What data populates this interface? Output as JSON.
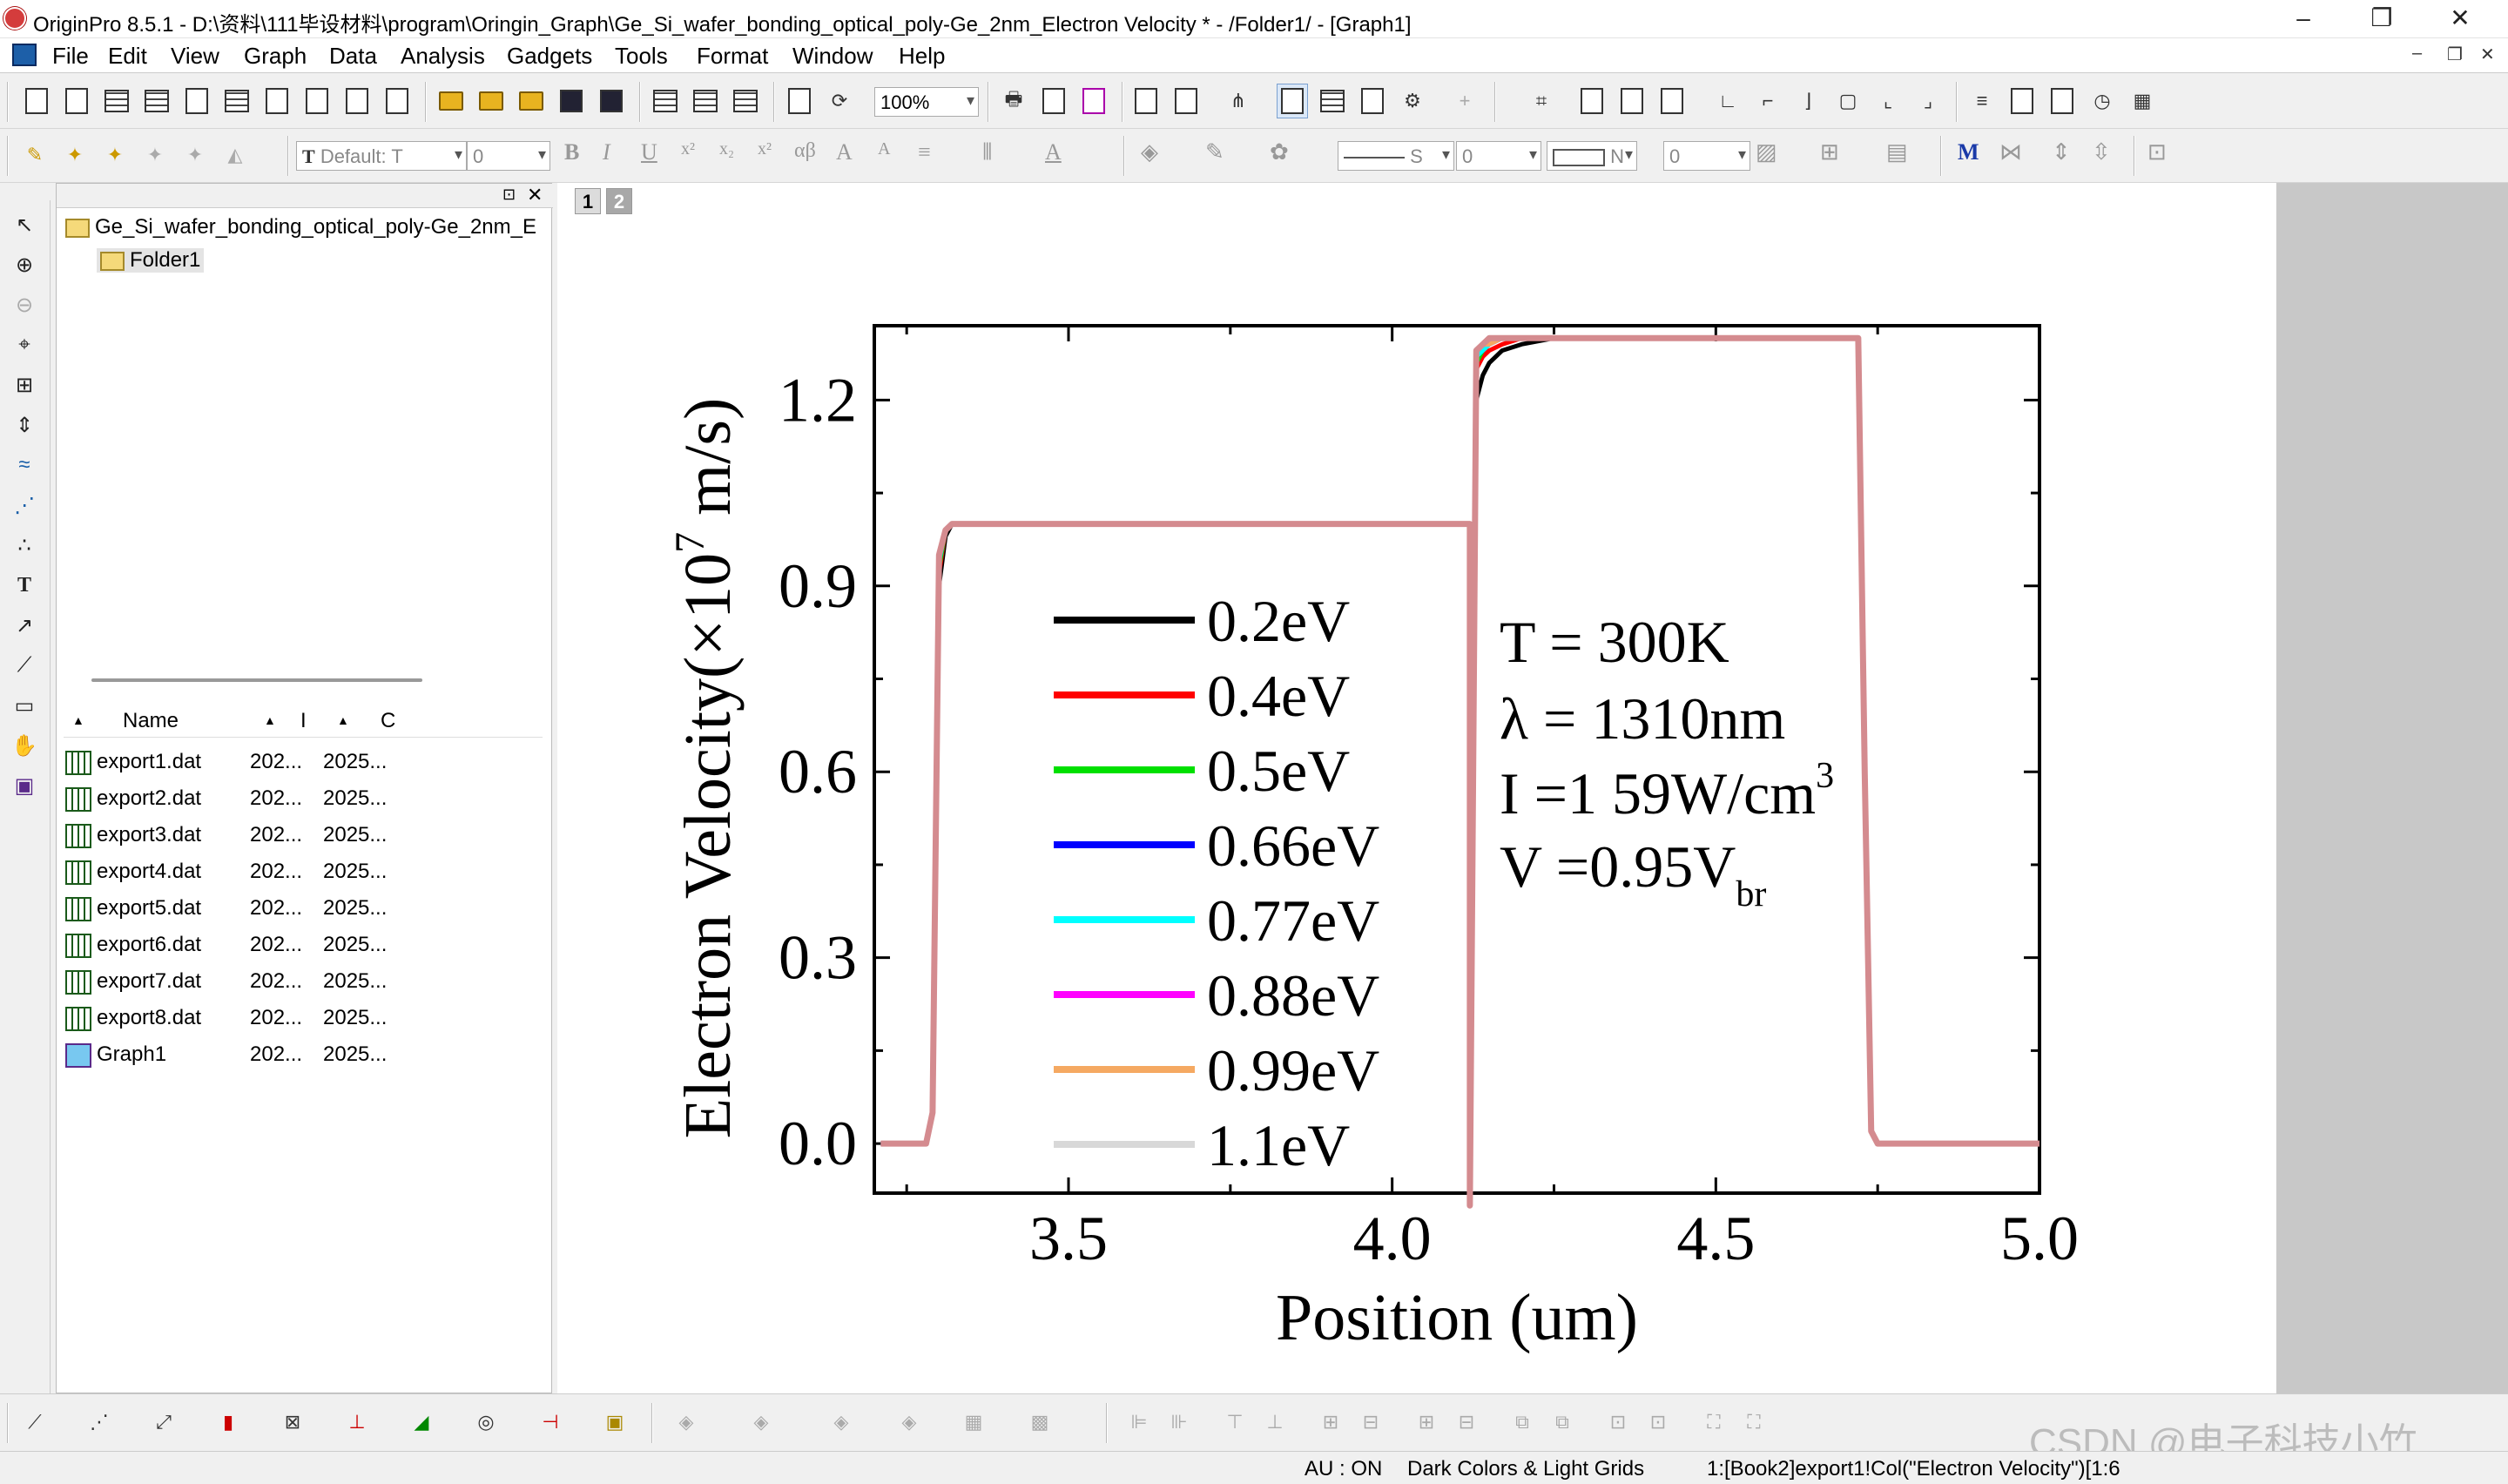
{
  "window": {
    "title": "OriginPro 8.5.1 - D:\\资料\\111毕设材料\\program\\Oringin_Graph\\Ge_Si_wafer_bonding_optical_poly-Ge_2nm_Electron Velocity * - /Folder1/ - [Graph1]",
    "min": "–",
    "max": "❐",
    "close": "✕"
  },
  "menu": [
    "File",
    "Edit",
    "View",
    "Graph",
    "Data",
    "Analysis",
    "Gadgets",
    "Tools",
    "Format",
    "Window",
    "Help"
  ],
  "mdi_controls": [
    "–",
    "❐",
    "✕"
  ],
  "toolbar": {
    "zoom": "100%",
    "font": "Default: T",
    "font_size": "0",
    "line_style": "S",
    "line_width": "0",
    "fill_label": "N",
    "fill_num": "0"
  },
  "project": {
    "root": "Ge_Si_wafer_bonding_optical_poly-Ge_2nm_E",
    "folder": "Folder1"
  },
  "files": {
    "headers": [
      "Name",
      "I",
      "C"
    ],
    "rows": [
      {
        "name": "export1.dat",
        "d1": "202...",
        "d2": "2025...",
        "kind": "workbook"
      },
      {
        "name": "export2.dat",
        "d1": "202...",
        "d2": "2025...",
        "kind": "workbook"
      },
      {
        "name": "export3.dat",
        "d1": "202...",
        "d2": "2025...",
        "kind": "workbook"
      },
      {
        "name": "export4.dat",
        "d1": "202...",
        "d2": "2025...",
        "kind": "workbook"
      },
      {
        "name": "export5.dat",
        "d1": "202...",
        "d2": "2025...",
        "kind": "workbook"
      },
      {
        "name": "export6.dat",
        "d1": "202...",
        "d2": "2025...",
        "kind": "workbook"
      },
      {
        "name": "export7.dat",
        "d1": "202...",
        "d2": "2025...",
        "kind": "workbook"
      },
      {
        "name": "export8.dat",
        "d1": "202...",
        "d2": "2025...",
        "kind": "workbook"
      },
      {
        "name": "Graph1",
        "d1": "202...",
        "d2": "2025...",
        "kind": "graph"
      }
    ]
  },
  "pages": [
    "1",
    "2"
  ],
  "status": {
    "au": "AU : ON",
    "theme": "Dark Colors & Light Grids",
    "ref": "1:[Book2]export1!Col(\"Electron Velocity\")[1:6"
  },
  "watermark": "CSDN @电子科技小竹",
  "chart_data": {
    "type": "line",
    "xlabel": "Position (um)",
    "ylabel_pre": "Electron Velocity(×10",
    "ylabel_sup": "7",
    "ylabel_post": " m/s)",
    "xlim": [
      3.2,
      5.0
    ],
    "ylim": [
      -0.08,
      1.32
    ],
    "xticks": [
      3.5,
      4.0,
      4.5,
      5.0
    ],
    "xticklabels": [
      "3.5",
      "4.0",
      "4.5",
      "5.0"
    ],
    "yticks": [
      0.0,
      0.3,
      0.6,
      0.9,
      1.2
    ],
    "yticklabels": [
      "0.0",
      "0.3",
      "0.6",
      "0.9",
      "1.2"
    ],
    "x": [
      3.21,
      3.28,
      3.29,
      3.3,
      3.31,
      3.32,
      4.12,
      4.12,
      4.13,
      4.14,
      4.15,
      4.17,
      4.2,
      4.25,
      4.72,
      4.73,
      4.74,
      4.75,
      5.0
    ],
    "series": [
      {
        "name": "0.2eV",
        "color": "#000000",
        "values": [
          0,
          0,
          0.05,
          0.9,
          0.98,
          1.0,
          1.0,
          -0.1,
          1.2,
          1.24,
          1.26,
          1.28,
          1.29,
          1.3,
          1.3,
          0.6,
          0.02,
          0,
          0
        ]
      },
      {
        "name": "0.4eV",
        "color": "#ff0000",
        "values": [
          0,
          0,
          0.05,
          0.92,
          0.99,
          1.0,
          1.0,
          -0.1,
          1.25,
          1.27,
          1.28,
          1.29,
          1.3,
          1.3,
          1.3,
          0.6,
          0.02,
          0,
          0
        ]
      },
      {
        "name": "0.5eV",
        "color": "#00e000",
        "values": [
          0,
          0,
          0.05,
          0.93,
          0.99,
          1.0,
          1.0,
          -0.1,
          1.26,
          1.28,
          1.29,
          1.3,
          1.3,
          1.3,
          1.3,
          0.6,
          0.02,
          0,
          0
        ]
      },
      {
        "name": "0.66eV",
        "color": "#0000ff",
        "values": [
          0,
          0,
          0.05,
          0.94,
          0.99,
          1.0,
          1.0,
          -0.1,
          1.27,
          1.28,
          1.29,
          1.3,
          1.3,
          1.3,
          1.3,
          0.6,
          0.02,
          0,
          0
        ]
      },
      {
        "name": "0.77eV",
        "color": "#00ffff",
        "values": [
          0,
          0,
          0.05,
          0.94,
          0.99,
          1.0,
          1.0,
          -0.1,
          1.27,
          1.28,
          1.29,
          1.3,
          1.3,
          1.3,
          1.3,
          0.6,
          0.02,
          0,
          0
        ]
      },
      {
        "name": "0.88eV",
        "color": "#ff00ff",
        "values": [
          0,
          0,
          0.05,
          0.95,
          0.99,
          1.0,
          1.0,
          -0.1,
          1.28,
          1.29,
          1.29,
          1.3,
          1.3,
          1.3,
          1.3,
          0.6,
          0.02,
          0,
          0
        ]
      },
      {
        "name": "0.99eV",
        "color": "#f5a962",
        "values": [
          0,
          0,
          0.05,
          0.95,
          0.99,
          1.0,
          1.0,
          -0.1,
          1.28,
          1.29,
          1.29,
          1.3,
          1.3,
          1.3,
          1.3,
          0.6,
          0.02,
          0,
          0
        ]
      },
      {
        "name": "1.1eV",
        "color": "#d8d8d8",
        "values": [
          0,
          0,
          0.05,
          0.95,
          0.99,
          1.0,
          1.0,
          -0.1,
          1.28,
          1.29,
          1.3,
          1.3,
          1.3,
          1.3,
          1.3,
          0.6,
          0.02,
          0,
          0
        ]
      }
    ],
    "overlay": {
      "color": "#d48b8f",
      "values": [
        0,
        0,
        0.05,
        0.95,
        0.99,
        1.0,
        1.0,
        -0.1,
        1.28,
        1.29,
        1.3,
        1.3,
        1.3,
        1.3,
        1.3,
        0.6,
        0.02,
        0,
        0
      ]
    },
    "annotations": [
      "T = 300K",
      "λ = 1310nm",
      "I =1 59W/cm",
      "V =0.95V"
    ],
    "annotation_sup": "3",
    "annotation_sub": "br",
    "legend_position": "inside-left"
  }
}
